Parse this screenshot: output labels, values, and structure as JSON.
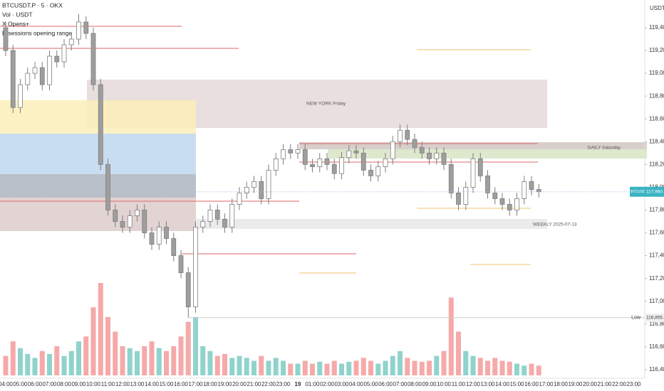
{
  "chart_data": {
    "type": "candlestick",
    "title": "BTCUSDT.P · 5 · OKX",
    "legend_lines": [
      "Vol · USDT",
      "X Opens+",
      "B-sessions opening range"
    ],
    "axis_unit": "USDT",
    "x_labels": [
      "04:00",
      "05:00",
      "06:00",
      "07:00",
      "08:00",
      "09:00",
      "10:00",
      "11:00",
      "12:00",
      "13:00",
      "14:00",
      "15:00",
      "16:00",
      "17:00",
      "18:00",
      "19:00",
      "20:00",
      "21:00",
      "22:00",
      "23:00",
      "19",
      "01:00",
      "02:00",
      "03:00",
      "04:00",
      "05:00",
      "06:00",
      "07:00",
      "08:00",
      "09:00",
      "10:00",
      "11:00",
      "12:00",
      "13:00",
      "14:00",
      "15:00",
      "16:00",
      "17:00",
      "18:00",
      "19:00",
      "20:00",
      "21:00",
      "22:00",
      "23:00"
    ],
    "open": [
      119400,
      119200,
      118700,
      118900,
      119000,
      119050,
      118900,
      119150,
      119100,
      119250,
      119300,
      119450,
      119350,
      118900,
      118200,
      117800,
      117700,
      117650,
      117750,
      117800,
      117600,
      117500,
      117650,
      117550,
      117400,
      117250,
      116950,
      117650,
      117700,
      117800,
      117720,
      117650,
      117850,
      117950,
      118000,
      118050,
      117900,
      118150,
      118250,
      118330,
      118300,
      118330,
      118200,
      118180,
      118250,
      118200,
      118120,
      118260,
      118320,
      118300,
      118150,
      118100,
      118180,
      118250,
      118400,
      118500,
      118420,
      118350,
      118300,
      118250,
      118300,
      118200,
      117950,
      117850,
      118000,
      118250,
      118100,
      117950,
      117900,
      117850,
      117800,
      117900,
      118050,
      117980
    ],
    "high": [
      119450,
      119250,
      118950,
      119050,
      119100,
      119100,
      119200,
      119200,
      119300,
      119350,
      119520,
      119500,
      119400,
      118950,
      118250,
      117850,
      117750,
      117800,
      117850,
      117850,
      117650,
      117700,
      117700,
      117600,
      117450,
      117300,
      117700,
      117750,
      117850,
      117850,
      117770,
      117900,
      118000,
      118050,
      118100,
      118100,
      118200,
      118300,
      118380,
      118380,
      118380,
      118380,
      118250,
      118300,
      118300,
      118250,
      118310,
      118370,
      118370,
      118350,
      118200,
      118230,
      118300,
      118450,
      118550,
      118550,
      118470,
      118400,
      118350,
      118350,
      118350,
      118250,
      118000,
      118050,
      118300,
      118300,
      118150,
      118000,
      117950,
      117900,
      117950,
      118100,
      118100,
      118030
    ],
    "low": [
      119150,
      118650,
      118650,
      118850,
      118950,
      118850,
      118850,
      119050,
      119050,
      119200,
      119250,
      119300,
      118850,
      118150,
      117750,
      117650,
      117600,
      117600,
      117700,
      117550,
      117450,
      117450,
      117500,
      117350,
      117200,
      116855.4,
      116900,
      117600,
      117650,
      117670,
      117600,
      117600,
      117800,
      117900,
      117950,
      117850,
      117850,
      118100,
      118200,
      118250,
      118250,
      118150,
      118130,
      118130,
      118150,
      118070,
      118070,
      118210,
      118250,
      118100,
      118050,
      118050,
      118130,
      118200,
      118350,
      118370,
      118300,
      118250,
      118200,
      118200,
      118150,
      117900,
      117800,
      117800,
      117950,
      118050,
      117900,
      117850,
      117800,
      117750,
      117750,
      117850,
      117930,
      117910
    ],
    "close": [
      119200,
      118700,
      118900,
      119000,
      119050,
      118900,
      119150,
      119100,
      119250,
      119300,
      119450,
      119350,
      118900,
      118200,
      117800,
      117700,
      117650,
      117750,
      117800,
      117600,
      117500,
      117650,
      117550,
      117400,
      117250,
      116950,
      117650,
      117700,
      117800,
      117720,
      117650,
      117850,
      117950,
      118000,
      118050,
      117900,
      118150,
      118250,
      118330,
      118300,
      118330,
      118200,
      118180,
      118250,
      118200,
      118120,
      118260,
      118320,
      118300,
      118150,
      118100,
      118180,
      118250,
      118400,
      118500,
      118420,
      118350,
      118300,
      118250,
      118300,
      118200,
      117950,
      117850,
      118000,
      118250,
      118100,
      117950,
      117900,
      117850,
      117800,
      117900,
      118050,
      117980,
      117960.5
    ],
    "volume": [
      20,
      35,
      28,
      22,
      18,
      25,
      22,
      30,
      20,
      25,
      35,
      40,
      70,
      95,
      60,
      45,
      30,
      28,
      25,
      30,
      35,
      28,
      25,
      30,
      40,
      55,
      60,
      30,
      25,
      20,
      22,
      18,
      20,
      18,
      15,
      20,
      15,
      18,
      15,
      12,
      12,
      15,
      12,
      14,
      12,
      15,
      12,
      14,
      15,
      18,
      15,
      12,
      15,
      20,
      25,
      18,
      15,
      14,
      15,
      20,
      25,
      80,
      45,
      25,
      20,
      18,
      15,
      18,
      15,
      14,
      12,
      10,
      12,
      10
    ],
    "up_color": "#ffffff",
    "down_color": "#9e9e9e",
    "wick_color": "#7d7d7d",
    "volume_up_color": "#8fd3cc",
    "volume_down_color": "#f6a9a9",
    "ylim": [
      116337,
      119643
    ],
    "yticks": [
      {
        "value": 116400,
        "label": "116,400.0"
      },
      {
        "value": 116600,
        "label": "116,600.0"
      },
      {
        "value": 116800,
        "label": "116,800.0"
      },
      {
        "value": 117000,
        "label": "117,000.0"
      },
      {
        "value": 117200,
        "label": "117,200.0"
      },
      {
        "value": 117400,
        "label": "117,400.0"
      },
      {
        "value": 117600,
        "label": "117,600.0"
      },
      {
        "value": 117800,
        "label": "117,800.0"
      },
      {
        "value": 118000,
        "label": "118,000.0"
      },
      {
        "value": 118200,
        "label": "118,200.0"
      },
      {
        "value": 118400,
        "label": "118,400.0"
      },
      {
        "value": 118600,
        "label": "118,600.0"
      },
      {
        "value": 118800,
        "label": "118,800.0"
      },
      {
        "value": 119000,
        "label": "119,000.0"
      },
      {
        "value": 119200,
        "label": "119,200.0"
      },
      {
        "value": 119400,
        "label": "119,400.0"
      }
    ],
    "last_price": {
      "value": 117960.5,
      "label": "117,960.5"
    },
    "symbol_tag": "BTCUSDT.P",
    "low_marker": {
      "text": "Low",
      "value": 116855.4,
      "label": "116,855.4"
    },
    "annotations": [
      "NEW YORK Friday",
      "DAILY Saturday",
      "WEEKLY 2025-07-13"
    ]
  }
}
